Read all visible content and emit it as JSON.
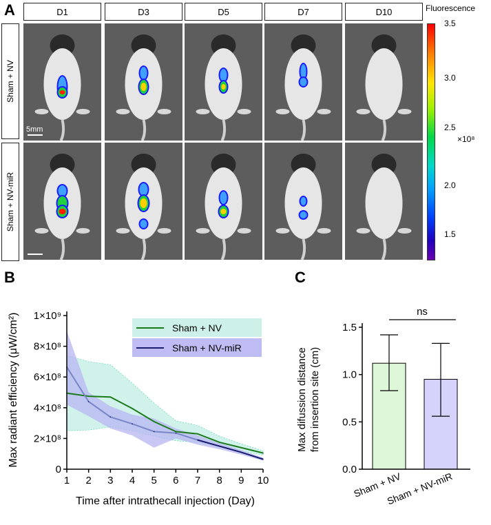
{
  "panels": {
    "a": "A",
    "b": "B",
    "c": "C"
  },
  "panel_a": {
    "days": [
      "D1",
      "D3",
      "D5",
      "D7",
      "D10"
    ],
    "rows": [
      "Sham + NV",
      "Sham + NV-miR"
    ],
    "scale_bar_label": "5mm",
    "colorbar": {
      "title": "Fluorescence",
      "ticks": [
        "3.5",
        "3.0",
        "2.5",
        "2.0",
        "1.5"
      ],
      "exponent": "×10⁸"
    }
  },
  "chart_data": [
    {
      "type": "line",
      "title": "",
      "xlabel": "Time after intrathecall injection (Day)",
      "ylabel": "Max radiant efficiency (μW/cm²)",
      "x": [
        1,
        2,
        3,
        4,
        5,
        6,
        7,
        8,
        9,
        10
      ],
      "xlim": [
        1,
        10
      ],
      "ylim": [
        0,
        1000000000
      ],
      "ytick_labels": [
        "0",
        "2×10⁸",
        "4×10⁸",
        "6×10⁸",
        "8×10⁸",
        "1×10⁹"
      ],
      "xtick_labels": [
        "1",
        "2",
        "3",
        "4",
        "5",
        "6",
        "7",
        "8",
        "9",
        "10"
      ],
      "legend_position": "top-right",
      "series": [
        {
          "name": "Sham + NV",
          "color": "#1a7a1a",
          "band_color": "#c8f0e6",
          "values": [
            495000000,
            475000000,
            470000000,
            395000000,
            310000000,
            245000000,
            230000000,
            175000000,
            140000000,
            105000000
          ],
          "lower": [
            250000000,
            255000000,
            275000000,
            250000000,
            215000000,
            185000000,
            175000000,
            145000000,
            120000000,
            90000000
          ],
          "upper": [
            740000000,
            700000000,
            680000000,
            560000000,
            430000000,
            315000000,
            285000000,
            215000000,
            165000000,
            120000000
          ]
        },
        {
          "name": "Sham + NV-miR",
          "color": "#1a1a6e",
          "band_color": "#b7b5f2",
          "values": [
            665000000,
            440000000,
            340000000,
            295000000,
            245000000,
            235000000,
            190000000,
            150000000,
            110000000,
            65000000
          ],
          "lower": [
            420000000,
            345000000,
            265000000,
            220000000,
            140000000,
            200000000,
            160000000,
            130000000,
            95000000,
            55000000
          ],
          "upper": [
            900000000,
            500000000,
            410000000,
            355000000,
            330000000,
            265000000,
            220000000,
            170000000,
            125000000,
            75000000
          ]
        }
      ]
    },
    {
      "type": "bar",
      "title": "",
      "ylabel": "Max difussion distance from insertion site (cm)",
      "categories": [
        "Sham + NV",
        "Sham + NV-miR"
      ],
      "values": [
        1.12,
        0.95
      ],
      "errors_low": [
        0.83,
        0.56
      ],
      "errors_high": [
        1.42,
        1.33
      ],
      "colors": [
        "#dff7d9",
        "#d5d3fb"
      ],
      "ylim": [
        0,
        1.5
      ],
      "ytick_labels": [
        "0.0",
        "0.5",
        "1.0",
        "1.5"
      ],
      "annotation": "ns"
    }
  ]
}
